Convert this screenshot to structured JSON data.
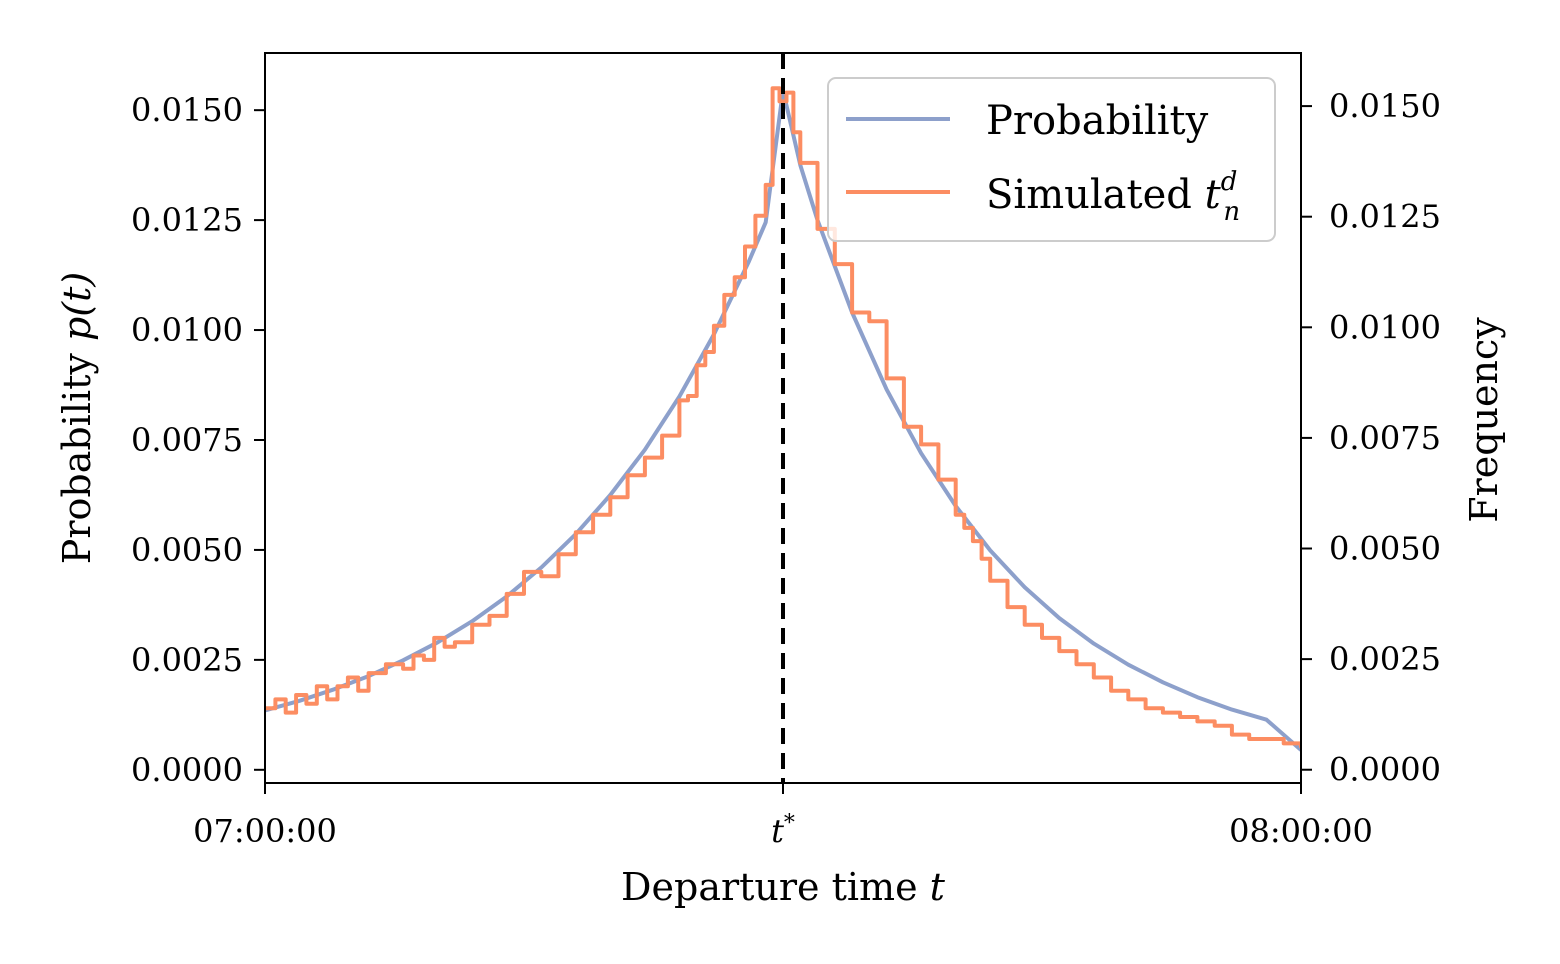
{
  "chart_data": {
    "type": "line",
    "xlabel": "Departure time",
    "xlabel_var": "t",
    "ylabel": "Probability",
    "ylabel_var": "p(t)",
    "ylabel_right": "Frequency",
    "x_tick_labels": [
      "07:00:00",
      "t*",
      "08:00:00"
    ],
    "x_tick_minutes": [
      0,
      30,
      60
    ],
    "xlim": [
      0,
      60
    ],
    "ylim": [
      -0.0003,
      0.0163
    ],
    "y_ticks": [
      0.0,
      0.0025,
      0.005,
      0.0075,
      0.01,
      0.0125,
      0.015
    ],
    "y_tick_labels": [
      "0.0000",
      "0.0025",
      "0.0050",
      "0.0075",
      "0.0100",
      "0.0125",
      "0.0150"
    ],
    "y_right_ylim": [
      -0.0003,
      0.0162
    ],
    "y_right_ticks": [
      0.0,
      0.0025,
      0.005,
      0.0075,
      0.01,
      0.0125,
      0.015
    ],
    "y_right_tick_labels": [
      "0.0000",
      "0.0025",
      "0.0050",
      "0.0075",
      "0.0100",
      "0.0125",
      "0.0150"
    ],
    "t_star_minute": 30,
    "grid": false,
    "legend_position": "top-right",
    "series": [
      {
        "name": "Probability",
        "style": "line",
        "color": "#8da0cb",
        "x": [
          0,
          2,
          4,
          6,
          8,
          10,
          12,
          14,
          16,
          18,
          20,
          22,
          24,
          26,
          28,
          29,
          30,
          31,
          32,
          34,
          36,
          38,
          40,
          42,
          44,
          46,
          48,
          50,
          52,
          54,
          56,
          58,
          60
        ],
        "values": [
          0.00135,
          0.00157,
          0.00183,
          0.00213,
          0.00249,
          0.0029,
          0.00338,
          0.00394,
          0.0046,
          0.00536,
          0.00625,
          0.00728,
          0.00849,
          0.0099,
          0.01154,
          0.01245,
          0.01545,
          0.01375,
          0.0125,
          0.0104,
          0.00865,
          0.0072,
          0.006,
          0.00499,
          0.00415,
          0.00345,
          0.00287,
          0.00239,
          0.00199,
          0.00165,
          0.00137,
          0.00114,
          0.00045
        ]
      },
      {
        "name": "Simulated",
        "name_var": "t",
        "name_sup": "d",
        "name_sub": "n",
        "style": "step",
        "color": "#fc8d62",
        "x": [
          0,
          0.6,
          1.2,
          1.8,
          2.4,
          3.0,
          3.6,
          4.2,
          4.8,
          5.4,
          6.0,
          7.0,
          8.0,
          8.6,
          9.2,
          9.8,
          10.4,
          11.0,
          12.0,
          13.0,
          14.0,
          15.0,
          16.0,
          17.0,
          18.0,
          19.0,
          20.0,
          21.0,
          22.0,
          23.0,
          24.0,
          24.5,
          25.0,
          25.5,
          26.0,
          26.6,
          27.2,
          27.8,
          28.4,
          29.0,
          29.4,
          29.8,
          30.2,
          30.6,
          31.0,
          32.0,
          33.0,
          34.0,
          35.0,
          36.0,
          37.0,
          38.0,
          39.0,
          40.0,
          40.5,
          41.0,
          41.5,
          42.0,
          43.0,
          44.0,
          45.0,
          46.0,
          47.0,
          48.0,
          49.0,
          50.0,
          51.0,
          52.0,
          53.0,
          54.0,
          55.0,
          56.0,
          57.0,
          58.0,
          59.0,
          60.0
        ],
        "values": [
          0.0014,
          0.0016,
          0.0013,
          0.0017,
          0.0015,
          0.0019,
          0.0016,
          0.0019,
          0.0021,
          0.0018,
          0.0022,
          0.0024,
          0.0023,
          0.0026,
          0.0025,
          0.003,
          0.0028,
          0.0029,
          0.0033,
          0.0035,
          0.004,
          0.0045,
          0.0044,
          0.0049,
          0.0054,
          0.0058,
          0.0062,
          0.0067,
          0.0071,
          0.0076,
          0.0084,
          0.0085,
          0.0092,
          0.0095,
          0.0101,
          0.0108,
          0.0112,
          0.0119,
          0.0126,
          0.0133,
          0.0155,
          0.0152,
          0.0154,
          0.0145,
          0.0138,
          0.0123,
          0.0115,
          0.0104,
          0.0102,
          0.0089,
          0.0078,
          0.0074,
          0.0066,
          0.0058,
          0.0055,
          0.0052,
          0.0048,
          0.0043,
          0.0037,
          0.0033,
          0.003,
          0.0027,
          0.0024,
          0.0021,
          0.0018,
          0.0016,
          0.0014,
          0.0013,
          0.0012,
          0.0011,
          0.001,
          0.0008,
          0.0007,
          0.0007,
          0.0006,
          0.0005
        ]
      }
    ]
  }
}
